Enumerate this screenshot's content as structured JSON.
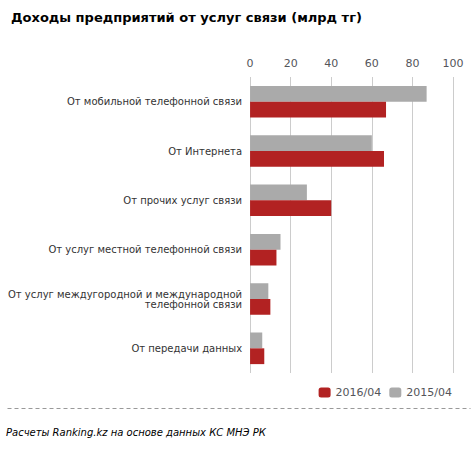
{
  "chart_data": {
    "type": "bar",
    "orientation": "horizontal",
    "title": "Доходы предприятий от услуг связи (млрд тг)",
    "categories": [
      "От передачи данных",
      "От услуг междугородной и международной\nтелефонной связи",
      "От услуг местной телефонной связи",
      "От прочих услуг связи",
      "От Интернета",
      "От мобильной телефонной связи"
    ],
    "series": [
      {
        "name": "2016/04",
        "color": "#b22222",
        "values": [
          7,
          10,
          13,
          40,
          66,
          67
        ]
      },
      {
        "name": "2015/04",
        "color": "#aaaaaa",
        "values": [
          6,
          9,
          15,
          28,
          60,
          87
        ]
      }
    ],
    "xlim": [
      0,
      100
    ],
    "xticks": [
      0,
      20,
      40,
      60,
      80,
      100
    ],
    "grid": true,
    "legend": "lower right",
    "annotations": [
      "Расчеты Ranking.kz на основе данных КС МНЭ РК"
    ]
  }
}
